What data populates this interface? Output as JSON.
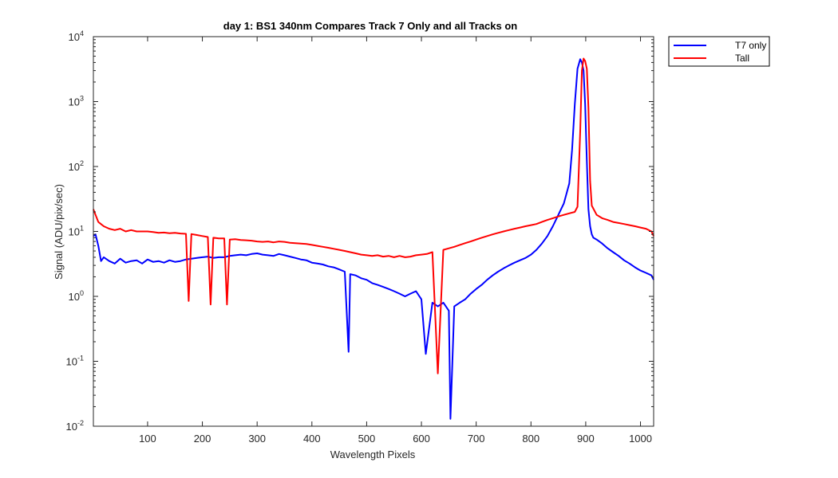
{
  "chart_data": {
    "type": "line",
    "title": "day 1: BS1  340nm  Compares Track 7 Only and all Tracks on",
    "xlabel": "Wavelength Pixels",
    "ylabel": "Signal (ADU/pix/sec)",
    "xlim": [
      1,
      1024
    ],
    "ylim": [
      0.01,
      10000
    ],
    "yscale": "log",
    "grid": false,
    "legend_position": "outside-top-right",
    "xticks": [
      100,
      200,
      300,
      400,
      500,
      600,
      700,
      800,
      900,
      1000
    ],
    "yticks": [
      {
        "value": 0.01,
        "base": "10",
        "exp": "-2"
      },
      {
        "value": 0.1,
        "base": "10",
        "exp": "-1"
      },
      {
        "value": 1,
        "base": "10",
        "exp": "0"
      },
      {
        "value": 10,
        "base": "10",
        "exp": "1"
      },
      {
        "value": 100,
        "base": "10",
        "exp": "2"
      },
      {
        "value": 1000,
        "base": "10",
        "exp": "3"
      },
      {
        "value": 10000,
        "base": "10",
        "exp": "4"
      }
    ],
    "series": [
      {
        "name": "T7 only",
        "color": "#0000ff",
        "x": [
          1,
          5,
          10,
          15,
          20,
          30,
          40,
          50,
          60,
          70,
          80,
          90,
          100,
          110,
          120,
          130,
          140,
          150,
          160,
          170,
          180,
          190,
          200,
          210,
          220,
          230,
          240,
          250,
          260,
          270,
          280,
          290,
          300,
          310,
          320,
          330,
          340,
          350,
          360,
          370,
          380,
          390,
          400,
          410,
          420,
          430,
          440,
          450,
          460,
          467,
          470,
          480,
          490,
          500,
          510,
          520,
          530,
          540,
          550,
          560,
          570,
          580,
          590,
          600,
          608,
          620,
          630,
          640,
          650,
          653,
          660,
          670,
          680,
          690,
          700,
          710,
          720,
          730,
          740,
          750,
          760,
          770,
          780,
          790,
          800,
          810,
          820,
          830,
          840,
          850,
          860,
          870,
          875,
          880,
          885,
          890,
          893,
          896,
          899,
          902,
          905,
          908,
          911,
          914,
          920,
          930,
          940,
          950,
          960,
          970,
          980,
          990,
          1000,
          1010,
          1020,
          1024
        ],
        "values": [
          8.5,
          9,
          6,
          3.5,
          4,
          3.5,
          3.2,
          3.8,
          3.3,
          3.5,
          3.6,
          3.2,
          3.7,
          3.4,
          3.5,
          3.3,
          3.6,
          3.4,
          3.5,
          3.7,
          3.8,
          3.9,
          4,
          4.1,
          3.9,
          4,
          4,
          4.2,
          4.3,
          4.4,
          4.3,
          4.5,
          4.6,
          4.4,
          4.3,
          4.2,
          4.5,
          4.3,
          4.1,
          3.9,
          3.7,
          3.6,
          3.3,
          3.2,
          3.1,
          2.9,
          2.8,
          2.6,
          2.4,
          0.14,
          2.2,
          2.1,
          1.9,
          1.8,
          1.6,
          1.5,
          1.4,
          1.3,
          1.2,
          1.1,
          1,
          1.1,
          1.2,
          0.9,
          0.13,
          0.8,
          0.7,
          0.8,
          0.6,
          0.013,
          0.7,
          0.8,
          0.9,
          1.1,
          1.3,
          1.5,
          1.8,
          2.1,
          2.4,
          2.7,
          3,
          3.3,
          3.6,
          3.9,
          4.4,
          5.2,
          6.5,
          8.5,
          12,
          18,
          27,
          55,
          180,
          900,
          3200,
          4500,
          4000,
          3000,
          900,
          120,
          22,
          12,
          9,
          8,
          7.5,
          6.5,
          5.5,
          4.8,
          4.2,
          3.6,
          3.2,
          2.8,
          2.5,
          2.3,
          2.1,
          1.8
        ]
      },
      {
        "name": "Tall",
        "color": "#ff0000",
        "x": [
          1,
          5,
          10,
          20,
          30,
          40,
          50,
          60,
          70,
          80,
          90,
          100,
          110,
          120,
          130,
          140,
          150,
          160,
          170,
          175,
          180,
          190,
          200,
          210,
          215,
          220,
          230,
          240,
          245,
          250,
          260,
          270,
          280,
          290,
          300,
          310,
          320,
          330,
          340,
          350,
          360,
          370,
          380,
          390,
          400,
          410,
          420,
          430,
          440,
          450,
          460,
          470,
          480,
          490,
          500,
          510,
          520,
          530,
          540,
          550,
          560,
          570,
          580,
          590,
          600,
          610,
          620,
          630,
          640,
          650,
          660,
          670,
          680,
          690,
          700,
          710,
          720,
          730,
          740,
          750,
          760,
          770,
          780,
          790,
          800,
          810,
          820,
          830,
          840,
          850,
          860,
          870,
          880,
          885,
          890,
          893,
          896,
          899,
          902,
          905,
          908,
          911,
          920,
          930,
          940,
          950,
          960,
          970,
          980,
          990,
          1000,
          1010,
          1020,
          1024
        ],
        "values": [
          22,
          18,
          14,
          12,
          11,
          10.5,
          11,
          10,
          10.5,
          10,
          10,
          10,
          9.8,
          9.5,
          9.6,
          9.4,
          9.5,
          9.3,
          9.2,
          0.85,
          9.1,
          8.8,
          8.5,
          8.2,
          0.75,
          8,
          7.8,
          7.8,
          0.75,
          7.5,
          7.6,
          7.4,
          7.3,
          7.2,
          7,
          6.9,
          7,
          6.8,
          7,
          6.9,
          6.7,
          6.6,
          6.5,
          6.4,
          6.2,
          6,
          5.8,
          5.6,
          5.4,
          5.2,
          5,
          4.8,
          4.6,
          4.4,
          4.3,
          4.2,
          4.3,
          4.1,
          4.2,
          4,
          4.2,
          4,
          4.1,
          4.3,
          4.4,
          4.5,
          4.8,
          0.065,
          5.2,
          5.5,
          5.8,
          6.2,
          6.6,
          7,
          7.5,
          8,
          8.5,
          9,
          9.5,
          10,
          10.5,
          11,
          11.5,
          12,
          12.5,
          13,
          14,
          15,
          16,
          17,
          18,
          19,
          20,
          24,
          350,
          3000,
          4600,
          4200,
          3200,
          800,
          60,
          25,
          18,
          16,
          15,
          14,
          13.5,
          13,
          12.5,
          12,
          11.5,
          11,
          10,
          8.5
        ]
      }
    ]
  }
}
